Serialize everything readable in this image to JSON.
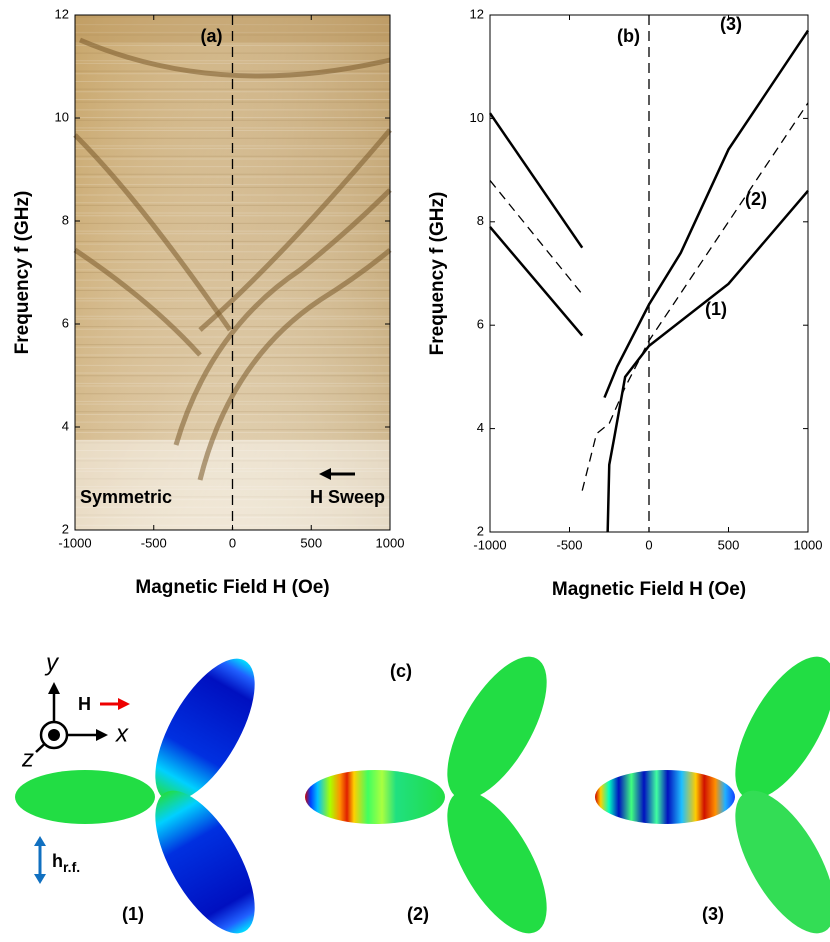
{
  "chart_data": [
    {
      "type": "image",
      "title": "(a)",
      "xlabel": "Magnetic Field H (Oe)",
      "ylabel": "Frequency f (GHz)",
      "annotations": [
        "Symmetric",
        "H Sweep"
      ],
      "xlim": [
        -1000,
        1000
      ],
      "ylim": [
        2,
        12
      ],
      "xticks": [
        -1000,
        -500,
        0,
        500,
        1000
      ],
      "yticks": [
        2,
        4,
        6,
        8,
        10,
        12
      ],
      "vline": 0
    },
    {
      "type": "line",
      "title": "(b)",
      "xlabel": "Magnetic Field H (Oe)",
      "ylabel": "Frequency f (GHz)",
      "xlim": [
        -1000,
        1000
      ],
      "ylim": [
        2,
        12
      ],
      "xticks": [
        -1000,
        -500,
        0,
        500,
        1000
      ],
      "yticks": [
        2,
        4,
        6,
        8,
        10,
        12
      ],
      "vline": 0,
      "series": [
        {
          "name": "(3)",
          "color": "#000000",
          "dash": false,
          "x": [
            -280,
            -200,
            0,
            200,
            500,
            1000
          ],
          "values": [
            4.6,
            5.2,
            6.4,
            7.4,
            9.4,
            11.7
          ]
        },
        {
          "name": "(2)",
          "color": "#000000",
          "dash": true,
          "x": [
            -420,
            -330,
            -250,
            -150,
            0,
            500,
            1000
          ],
          "values": [
            2.8,
            3.9,
            4.1,
            4.8,
            5.7,
            8.0,
            10.3
          ]
        },
        {
          "name": "(1)",
          "color": "#000000",
          "dash": false,
          "x": [
            -260,
            -250,
            -220,
            -150,
            0,
            500,
            1000
          ],
          "values": [
            2.0,
            3.3,
            3.8,
            5.0,
            5.6,
            6.8,
            8.6
          ]
        },
        {
          "color": "#000000",
          "dash": false,
          "x": [
            -1000,
            -420
          ],
          "values": [
            10.1,
            7.5
          ]
        },
        {
          "color": "#000000",
          "dash": true,
          "x": [
            -1000,
            -420
          ],
          "values": [
            8.8,
            6.6
          ]
        },
        {
          "color": "#000000",
          "dash": false,
          "x": [
            -1000,
            -420
          ],
          "values": [
            7.9,
            5.8
          ]
        }
      ]
    }
  ],
  "panel_c": {
    "title": "(c)",
    "axes": {
      "y": "y",
      "x": "x",
      "z": "z",
      "field": "H",
      "rf": "h",
      "rf_sub": "r.f."
    },
    "labels": [
      "(1)",
      "(2)",
      "(3)"
    ]
  }
}
